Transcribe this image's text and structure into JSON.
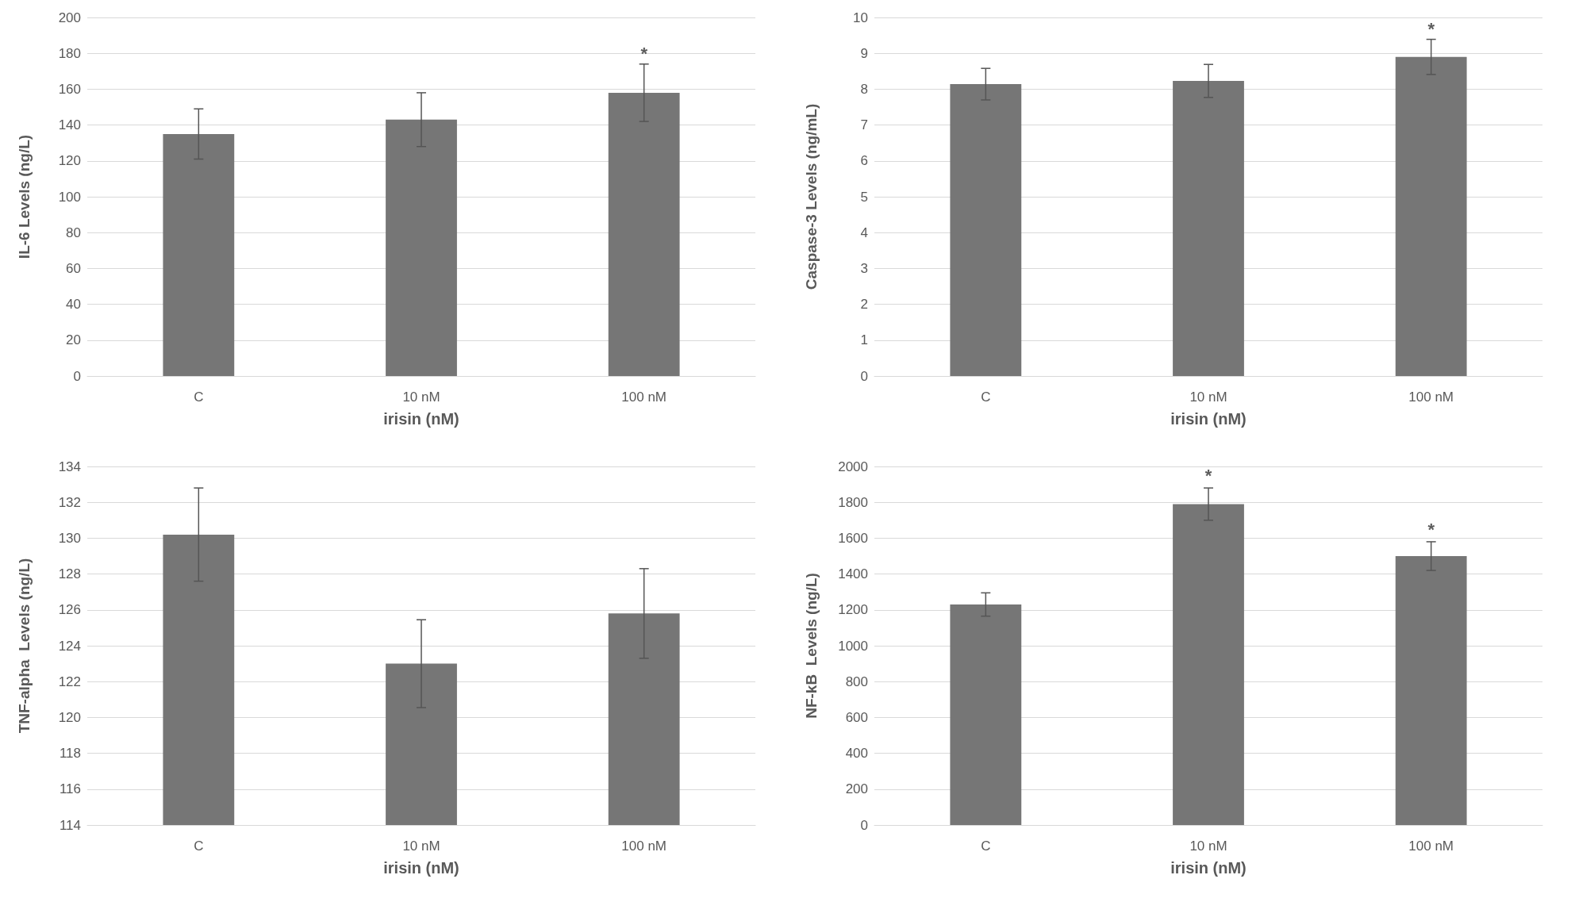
{
  "chart_data": [
    {
      "type": "bar",
      "ylabel": "IL-6 Levels (ng/L)",
      "xlabel": "irisin (nM)",
      "categories": [
        "C",
        "10 nM",
        "100 nM"
      ],
      "values": [
        135,
        143,
        158
      ],
      "errors": [
        14,
        15,
        16
      ],
      "color": "#767676",
      "ylim": [
        0,
        200
      ],
      "yticks": [
        0,
        20,
        40,
        60,
        80,
        100,
        120,
        140,
        160,
        180,
        200
      ],
      "grid": "y",
      "annotations": [
        {
          "text": "*",
          "x": "100 nM",
          "y": 174
        }
      ]
    },
    {
      "type": "bar",
      "ylabel": "Caspase-3 Levels (ng/mL)",
      "xlabel": "irisin (nM)",
      "categories": [
        "C",
        "10 nM",
        "100 nM"
      ],
      "values": [
        8.14,
        8.23,
        8.9
      ],
      "errors": [
        0.44,
        0.46,
        0.49
      ],
      "color": "#767676",
      "ylim": [
        0,
        10
      ],
      "yticks": [
        0,
        1,
        2,
        3,
        4,
        5,
        6,
        7,
        8,
        9,
        10
      ],
      "grid": "y",
      "annotations": [
        {
          "text": "*",
          "x": "100 nM",
          "y": 9.4
        }
      ]
    },
    {
      "type": "bar",
      "ylabel": "TNF-alpha  Levels (ng/L)",
      "xlabel": "irisin (nM)",
      "categories": [
        "C",
        "10 nM",
        "100 nM"
      ],
      "values": [
        130.2,
        123.0,
        125.8
      ],
      "errors": [
        2.6,
        2.45,
        2.5
      ],
      "color": "#767676",
      "ylim": [
        114,
        134
      ],
      "yticks": [
        114,
        116,
        118,
        120,
        122,
        124,
        126,
        128,
        130,
        132,
        134
      ],
      "grid": "y"
    },
    {
      "type": "bar",
      "ylabel": "NF-kB  Levels (ng/L)",
      "xlabel": "irisin (nM)",
      "categories": [
        "C",
        "10 nM",
        "100 nM"
      ],
      "values": [
        1230,
        1790,
        1500
      ],
      "errors": [
        65,
        90,
        80
      ],
      "color": "#767676",
      "ylim": [
        0,
        2000
      ],
      "yticks": [
        0,
        200,
        400,
        600,
        800,
        1000,
        1200,
        1400,
        1600,
        1800,
        2000
      ],
      "grid": "y",
      "annotations": [
        {
          "text": "*",
          "x": "10 nM",
          "y": 1890
        },
        {
          "text": "*",
          "x": "100 nM",
          "y": 1590
        }
      ]
    }
  ]
}
